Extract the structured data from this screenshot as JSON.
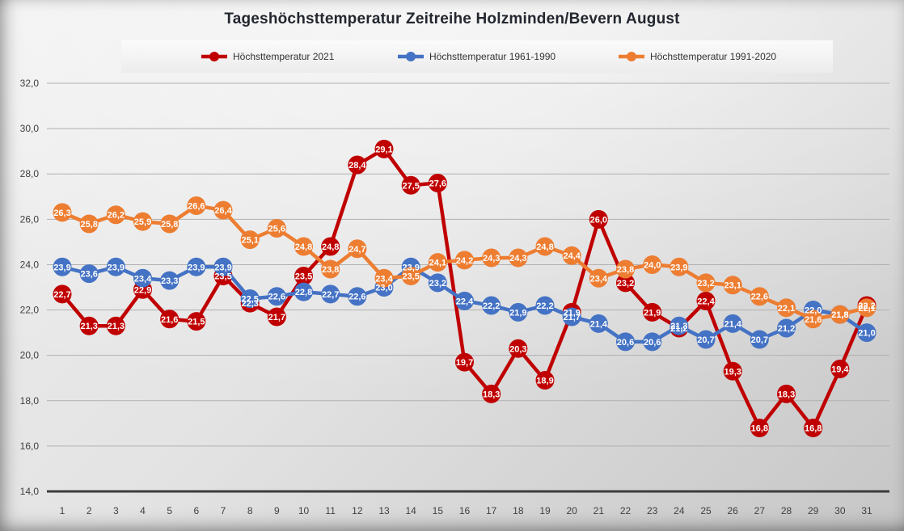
{
  "title": "Tageshöchsttemperatur Zeitreihe Holzminden/Bevern August",
  "legend": [
    {
      "label": "Höchsttemperatur 2021",
      "color": "#c00000"
    },
    {
      "label": "Höchsttemperatur 1961-1990",
      "color": "#4472c4"
    },
    {
      "label": "Höchsttemperatur 1991-2020",
      "color": "#ed7d31"
    }
  ],
  "axes": {
    "y_ticks": [
      "32,0",
      "30,0",
      "28,0",
      "26,0",
      "24,0",
      "22,0",
      "20,0",
      "18,0",
      "16,0",
      "14,0"
    ],
    "x_ticks": [
      1,
      2,
      3,
      4,
      5,
      6,
      7,
      8,
      9,
      10,
      11,
      12,
      13,
      14,
      15,
      16,
      17,
      18,
      19,
      20,
      21,
      22,
      23,
      24,
      25,
      26,
      27,
      28,
      29,
      30,
      31
    ]
  },
  "chart_data": {
    "type": "line",
    "title": "Tageshöchsttemperatur Zeitreihe Holzminden/Bevern August",
    "xlabel": "",
    "ylabel": "",
    "x": [
      1,
      2,
      3,
      4,
      5,
      6,
      7,
      8,
      9,
      10,
      11,
      12,
      13,
      14,
      15,
      16,
      17,
      18,
      19,
      20,
      21,
      22,
      23,
      24,
      25,
      26,
      27,
      28,
      29,
      30,
      31
    ],
    "series": [
      {
        "name": "Höchsttemperatur 2021",
        "color": "#c00000",
        "values": [
          22.7,
          21.3,
          21.3,
          22.9,
          21.6,
          21.5,
          23.5,
          22.3,
          21.7,
          23.5,
          24.8,
          28.4,
          29.1,
          27.5,
          27.6,
          19.7,
          18.3,
          20.3,
          18.9,
          21.9,
          26.0,
          23.2,
          21.9,
          21.2,
          22.4,
          19.3,
          16.8,
          18.3,
          16.8,
          19.4,
          22.2
        ]
      },
      {
        "name": "Höchsttemperatur 1961-1990",
        "color": "#4472c4",
        "values": [
          23.9,
          23.6,
          23.9,
          23.4,
          23.3,
          23.9,
          23.9,
          22.5,
          22.6,
          22.8,
          22.7,
          22.6,
          23.0,
          23.9,
          23.2,
          22.4,
          22.2,
          21.9,
          22.2,
          21.7,
          21.4,
          20.6,
          20.6,
          21.3,
          20.7,
          21.4,
          20.7,
          21.2,
          22.0,
          21.8,
          21.0
        ]
      },
      {
        "name": "Höchsttemperatur 1991-2020",
        "color": "#ed7d31",
        "values": [
          26.3,
          25.8,
          26.2,
          25.9,
          25.8,
          26.6,
          26.4,
          25.1,
          25.6,
          24.8,
          23.8,
          24.7,
          23.4,
          23.5,
          24.1,
          24.2,
          24.3,
          24.3,
          24.8,
          24.4,
          23.4,
          23.8,
          24.0,
          23.9,
          23.2,
          23.1,
          22.6,
          22.1,
          21.6,
          21.8,
          22.1
        ]
      }
    ],
    "ylim": [
      14,
      32
    ],
    "ytick_step": 2,
    "grid": true,
    "legend_position": "top",
    "decimal_separator": ",",
    "data_labels": true
  }
}
